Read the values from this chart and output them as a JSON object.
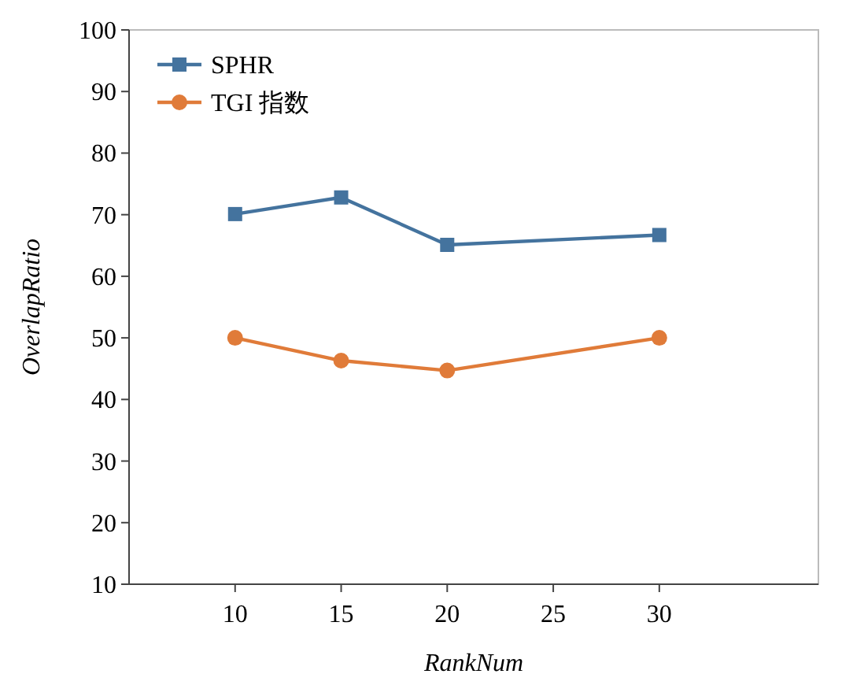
{
  "chart_data": {
    "type": "line",
    "xlabel": "RankNum",
    "ylabel": "OverlapRatio",
    "x": [
      10,
      15,
      20,
      30
    ],
    "series": [
      {
        "name": "SPHR",
        "color": "#44739e",
        "values": [
          70.1,
          72.8,
          65.1,
          66.7
        ],
        "marker": "square"
      },
      {
        "name": "TGI 指数",
        "color": "#e07b39",
        "values": [
          50,
          46.3,
          44.7,
          50
        ],
        "marker": "circle"
      }
    ],
    "xlim": [
      5,
      37.5
    ],
    "xticks": [
      10,
      15,
      20,
      25,
      30
    ],
    "ylim": [
      10,
      100
    ],
    "yticks": [
      10,
      20,
      30,
      40,
      50,
      60,
      70,
      80,
      90,
      100
    ],
    "grid": false,
    "legend": "top left",
    "line_style": "solid"
  }
}
